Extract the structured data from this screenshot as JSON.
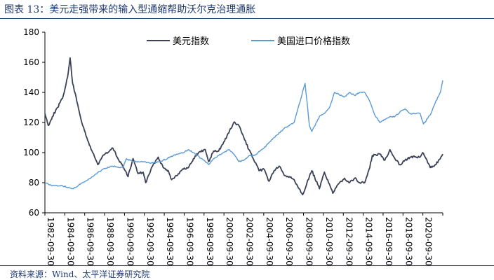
{
  "figure": {
    "title": "图表 13：美元走强带来的输入型通缩帮助沃尔克治理通胀",
    "source": "资料来源：Wind、太平洋证券研究院"
  },
  "chart_data": {
    "type": "line",
    "title": "图表 13：美元走强带来的输入型通缩帮助沃尔克治理通胀",
    "xlabel": "",
    "ylabel": "",
    "ylim": [
      60,
      180
    ],
    "xlim": [
      "1982-09-30",
      "2022-03-31"
    ],
    "y_ticks": [
      60,
      80,
      100,
      120,
      140,
      160,
      180
    ],
    "x_tick_labels": [
      "1982-09-30",
      "1984-09-30",
      "1986-09-30",
      "1988-09-30",
      "1990-09-30",
      "1992-09-30",
      "1994-09-30",
      "1996-09-30",
      "1998-09-30",
      "2000-09-30",
      "2002-09-30",
      "2004-09-30",
      "2006-09-30",
      "2008-09-30",
      "2010-09-30",
      "2012-09-30",
      "2014-09-30",
      "2016-09-30",
      "2018-09-30",
      "2020-09-30"
    ],
    "x_tick_labels_rotation": "vertical",
    "grid": false,
    "legend_position": "top",
    "series": [
      {
        "name": "美元指数",
        "color": "#3b4156",
        "points": [
          [
            "1982-09-30",
            126
          ],
          [
            "1983-01-31",
            118
          ],
          [
            "1983-06-30",
            124
          ],
          [
            "1983-12-31",
            130
          ],
          [
            "1984-06-30",
            136
          ],
          [
            "1984-12-31",
            150
          ],
          [
            "1985-03-31",
            163
          ],
          [
            "1985-06-30",
            146
          ],
          [
            "1985-12-31",
            132
          ],
          [
            "1986-06-30",
            118
          ],
          [
            "1986-12-31",
            108
          ],
          [
            "1987-06-30",
            100
          ],
          [
            "1987-12-31",
            92
          ],
          [
            "1988-06-30",
            98
          ],
          [
            "1988-12-31",
            100
          ],
          [
            "1989-06-30",
            103
          ],
          [
            "1989-12-31",
            96
          ],
          [
            "1990-06-30",
            91
          ],
          [
            "1990-12-31",
            84
          ],
          [
            "1991-06-30",
            96
          ],
          [
            "1991-12-31",
            86
          ],
          [
            "1992-06-30",
            87
          ],
          [
            "1992-09-30",
            80
          ],
          [
            "1993-06-30",
            92
          ],
          [
            "1993-12-31",
            97
          ],
          [
            "1994-06-30",
            90
          ],
          [
            "1994-12-31",
            88
          ],
          [
            "1995-04-30",
            82
          ],
          [
            "1995-12-31",
            86
          ],
          [
            "1996-06-30",
            89
          ],
          [
            "1996-12-31",
            90
          ],
          [
            "1997-06-30",
            96
          ],
          [
            "1997-12-31",
            100
          ],
          [
            "1998-08-31",
            102
          ],
          [
            "1998-12-31",
            94
          ],
          [
            "1999-06-30",
            101
          ],
          [
            "1999-12-31",
            101
          ],
          [
            "2000-06-30",
            107
          ],
          [
            "2000-12-31",
            113
          ],
          [
            "2001-06-30",
            120
          ],
          [
            "2001-12-31",
            118
          ],
          [
            "2002-06-30",
            110
          ],
          [
            "2002-12-31",
            102
          ],
          [
            "2003-06-30",
            95
          ],
          [
            "2003-12-31",
            88
          ],
          [
            "2004-06-30",
            89
          ],
          [
            "2004-12-31",
            81
          ],
          [
            "2005-06-30",
            88
          ],
          [
            "2005-12-31",
            91
          ],
          [
            "2006-06-30",
            85
          ],
          [
            "2006-12-31",
            84
          ],
          [
            "2007-06-30",
            82
          ],
          [
            "2007-12-31",
            76
          ],
          [
            "2008-04-30",
            72
          ],
          [
            "2008-12-31",
            84
          ],
          [
            "2009-03-31",
            88
          ],
          [
            "2009-12-31",
            76
          ],
          [
            "2010-06-30",
            87
          ],
          [
            "2010-12-31",
            79
          ],
          [
            "2011-04-30",
            73
          ],
          [
            "2011-12-31",
            80
          ],
          [
            "2012-06-30",
            83
          ],
          [
            "2012-12-31",
            80
          ],
          [
            "2013-06-30",
            83
          ],
          [
            "2013-12-31",
            80
          ],
          [
            "2014-06-30",
            80
          ],
          [
            "2014-12-31",
            90
          ],
          [
            "2015-03-31",
            98
          ],
          [
            "2015-12-31",
            99
          ],
          [
            "2016-06-30",
            95
          ],
          [
            "2016-12-31",
            102
          ],
          [
            "2017-06-30",
            96
          ],
          [
            "2017-12-31",
            92
          ],
          [
            "2018-06-30",
            95
          ],
          [
            "2018-12-31",
            97
          ],
          [
            "2019-06-30",
            97
          ],
          [
            "2019-12-31",
            97
          ],
          [
            "2020-03-31",
            100
          ],
          [
            "2020-06-30",
            97
          ],
          [
            "2020-12-31",
            90
          ],
          [
            "2021-06-30",
            92
          ],
          [
            "2021-12-31",
            96
          ],
          [
            "2022-03-31",
            99
          ]
        ]
      },
      {
        "name": "美国进口价格指数",
        "color": "#5b9bd5",
        "points": [
          [
            "1982-09-30",
            80
          ],
          [
            "1983-06-30",
            78
          ],
          [
            "1984-06-30",
            78
          ],
          [
            "1985-06-30",
            76
          ],
          [
            "1986-06-30",
            80
          ],
          [
            "1987-06-30",
            84
          ],
          [
            "1988-06-30",
            89
          ],
          [
            "1989-06-30",
            91
          ],
          [
            "1990-06-30",
            90
          ],
          [
            "1990-10-31",
            96
          ],
          [
            "1991-06-30",
            94
          ],
          [
            "1992-06-30",
            94
          ],
          [
            "1993-06-30",
            93
          ],
          [
            "1994-06-30",
            95
          ],
          [
            "1995-06-30",
            98
          ],
          [
            "1996-06-30",
            100
          ],
          [
            "1996-12-31",
            102
          ],
          [
            "1997-06-30",
            100
          ],
          [
            "1998-06-30",
            95
          ],
          [
            "1998-12-31",
            92
          ],
          [
            "1999-06-30",
            96
          ],
          [
            "2000-06-30",
            100
          ],
          [
            "2000-12-31",
            102
          ],
          [
            "2001-06-30",
            99
          ],
          [
            "2001-12-31",
            94
          ],
          [
            "2002-06-30",
            95
          ],
          [
            "2002-12-31",
            98
          ],
          [
            "2003-06-30",
            98
          ],
          [
            "2004-06-30",
            103
          ],
          [
            "2005-06-30",
            110
          ],
          [
            "2006-06-30",
            116
          ],
          [
            "2007-06-30",
            120
          ],
          [
            "2008-07-31",
            146
          ],
          [
            "2008-12-31",
            118
          ],
          [
            "2009-03-31",
            114
          ],
          [
            "2009-12-31",
            124
          ],
          [
            "2010-06-30",
            126
          ],
          [
            "2010-12-31",
            130
          ],
          [
            "2011-06-30",
            140
          ],
          [
            "2012-06-30",
            137
          ],
          [
            "2012-12-31",
            140
          ],
          [
            "2013-06-30",
            138
          ],
          [
            "2013-12-31",
            140
          ],
          [
            "2014-06-30",
            140
          ],
          [
            "2014-12-31",
            134
          ],
          [
            "2015-06-30",
            125
          ],
          [
            "2015-12-31",
            120
          ],
          [
            "2016-06-30",
            122
          ],
          [
            "2016-12-31",
            124
          ],
          [
            "2017-06-30",
            124
          ],
          [
            "2017-12-31",
            127
          ],
          [
            "2018-06-30",
            129
          ],
          [
            "2018-12-31",
            126
          ],
          [
            "2019-06-30",
            126
          ],
          [
            "2019-12-31",
            126
          ],
          [
            "2020-04-30",
            119
          ],
          [
            "2020-12-31",
            125
          ],
          [
            "2021-06-30",
            133
          ],
          [
            "2021-12-31",
            140
          ],
          [
            "2022-03-31",
            148
          ]
        ]
      }
    ]
  }
}
